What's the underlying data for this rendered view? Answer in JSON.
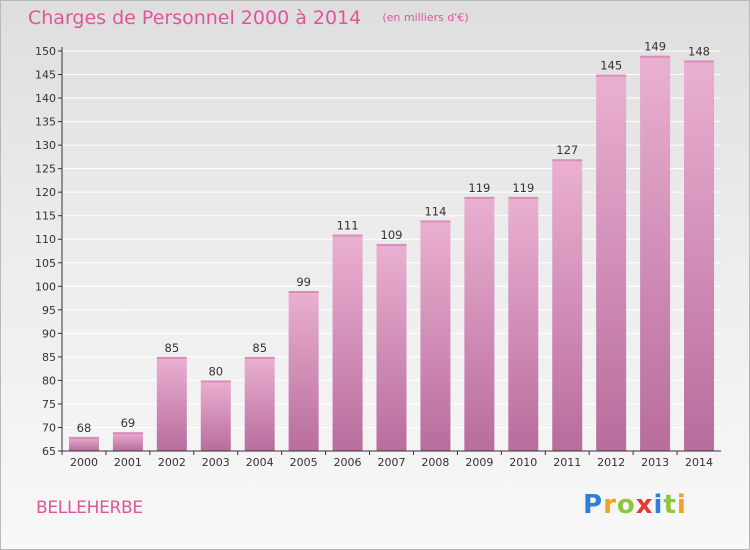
{
  "title": "Charges de Personnel 2000 à 2014",
  "subtitle": "(en milliers d'€)",
  "commune": "BELLEHERBE",
  "logo": {
    "text": "Proxiti",
    "letters": [
      {
        "ch": "P",
        "color": "#2f7fd8"
      },
      {
        "ch": "r",
        "color": "#f3a21b"
      },
      {
        "ch": "o",
        "color": "#8cc63f"
      },
      {
        "ch": "x",
        "color": "#e53a2f"
      },
      {
        "ch": "i",
        "color": "#2f7fd8"
      },
      {
        "ch": "t",
        "color": "#8cc63f"
      },
      {
        "ch": "i",
        "color": "#f3a21b"
      }
    ]
  },
  "colors": {
    "accent": "#e0559a",
    "bar_light": "#eab0d2",
    "bar_dark": "#b86d9c",
    "grid": "#ffffff",
    "axis": "#333333"
  },
  "chart_data": {
    "type": "bar",
    "title": "Charges de Personnel 2000 à 2014",
    "subtitle": "(en milliers d'€)",
    "categories": [
      "2000",
      "2001",
      "2002",
      "2003",
      "2004",
      "2005",
      "2006",
      "2007",
      "2008",
      "2009",
      "2010",
      "2011",
      "2012",
      "2013",
      "2014"
    ],
    "values": [
      68,
      69,
      85,
      80,
      85,
      99,
      111,
      109,
      114,
      119,
      119,
      127,
      145,
      149,
      148
    ],
    "ylim": [
      65,
      150
    ],
    "yticks": [
      65,
      70,
      75,
      80,
      85,
      90,
      95,
      100,
      105,
      110,
      115,
      120,
      125,
      130,
      135,
      140,
      145,
      150
    ],
    "xlabel": "",
    "ylabel": "",
    "grid": true,
    "legend": "none",
    "data_labels": true
  }
}
